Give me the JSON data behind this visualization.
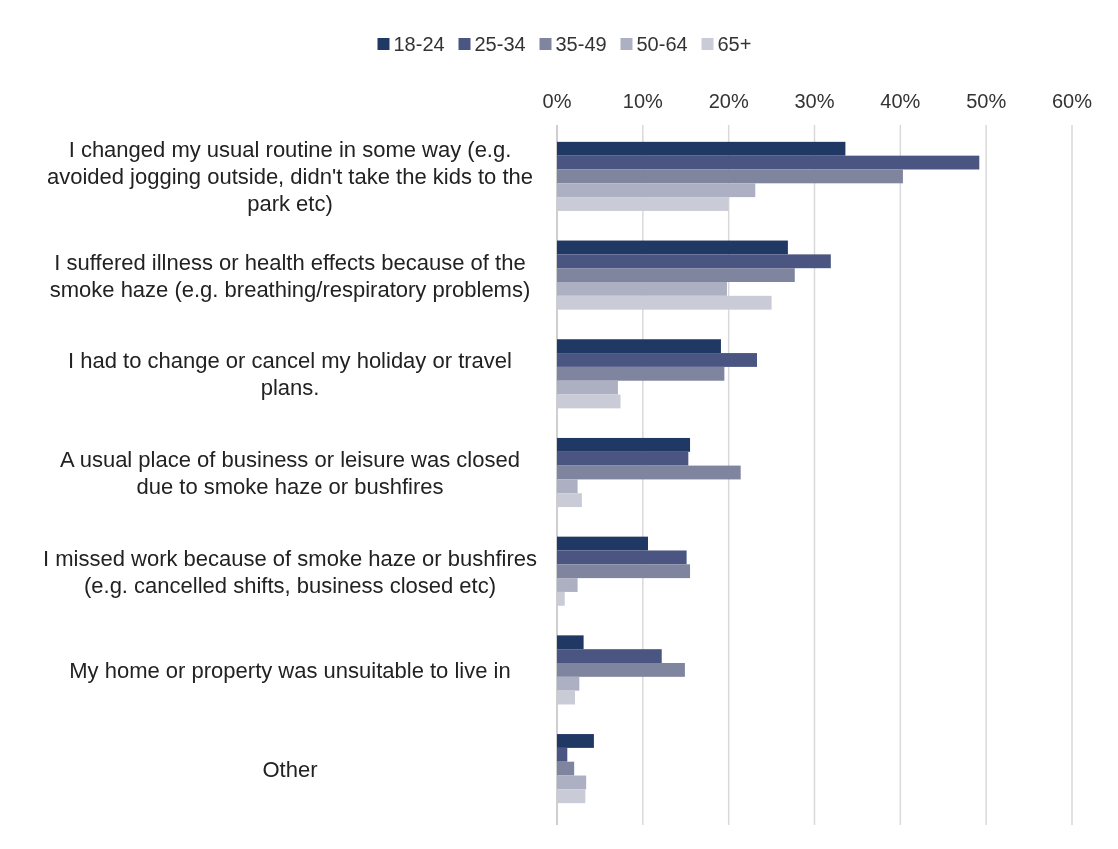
{
  "chart_data": {
    "type": "bar",
    "orientation": "horizontal",
    "categories": [
      "I changed my usual routine in some way (e.g. avoided jogging outside, didn't take the kids to the park etc)",
      "I suffered illness or health effects because of the smoke haze (e.g. breathing/respiratory problems)",
      "I had to change or cancel my holiday or travel plans.",
      "A usual place of business or leisure was closed due to smoke haze or bushfires",
      "I missed work because of smoke haze or bushfires (e.g. cancelled shifts, business closed etc)",
      "My home or property was unsuitable to live in",
      "Other"
    ],
    "series": [
      {
        "name": "18-24",
        "color": "#203864",
        "values": [
          33.6,
          26.9,
          19.1,
          15.5,
          10.6,
          3.1,
          4.3
        ]
      },
      {
        "name": "25-34",
        "color": "#4a5582",
        "values": [
          49.2,
          31.9,
          23.3,
          15.3,
          15.1,
          12.2,
          1.2
        ]
      },
      {
        "name": "35-49",
        "color": "#7f849f",
        "values": [
          40.3,
          27.7,
          19.5,
          21.4,
          15.5,
          14.9,
          2.0
        ]
      },
      {
        "name": "50-64",
        "color": "#adb0c2",
        "values": [
          23.1,
          19.8,
          7.1,
          2.4,
          2.4,
          2.6,
          3.4
        ]
      },
      {
        "name": "65+",
        "color": "#c9cbd6",
        "values": [
          20.0,
          25.0,
          7.4,
          2.9,
          0.9,
          2.1,
          3.3
        ]
      }
    ],
    "xlim": [
      0,
      60
    ],
    "xticks": [
      {
        "value": 0,
        "label": "0%"
      },
      {
        "value": 10,
        "label": "10%"
      },
      {
        "value": 20,
        "label": "20%"
      },
      {
        "value": 30,
        "label": "30%"
      },
      {
        "value": 40,
        "label": "40%"
      },
      {
        "value": 50,
        "label": "50%"
      },
      {
        "value": 60,
        "label": "60%"
      }
    ],
    "grid": "x",
    "legend": "top"
  }
}
